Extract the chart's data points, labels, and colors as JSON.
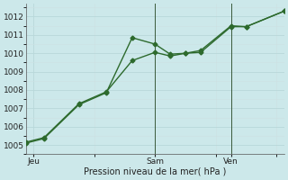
{
  "background_color": "#cce8ea",
  "grid_color_major": "#b8d8da",
  "grid_color_minor": "#cce0e2",
  "line_color": "#2d6a2d",
  "xlabel": "Pression niveau de la mer( hPa )",
  "ylim": [
    1004.5,
    1012.7
  ],
  "yticks": [
    1005,
    1006,
    1007,
    1008,
    1009,
    1010,
    1011,
    1012
  ],
  "xlim": [
    0,
    17
  ],
  "day_labels": [
    "Jeu",
    "Sam",
    "Ven"
  ],
  "day_positions": [
    0.5,
    8.5,
    13.5
  ],
  "vline_positions": [
    8.5,
    13.5
  ],
  "line1_x": [
    0.0,
    1.2,
    3.5,
    5.3,
    7.0,
    8.5,
    9.5,
    10.5,
    11.5,
    13.5,
    14.5,
    17.0
  ],
  "line1_y": [
    1005.1,
    1005.35,
    1007.2,
    1007.85,
    1010.85,
    1010.5,
    1009.95,
    1010.0,
    1010.05,
    1011.45,
    1011.45,
    1012.3
  ],
  "line2_x": [
    0.0,
    1.2,
    3.5,
    5.3,
    7.0,
    8.5,
    9.5,
    10.5,
    11.5,
    13.5,
    14.5,
    17.0
  ],
  "line2_y": [
    1005.15,
    1005.4,
    1007.25,
    1007.9,
    1009.6,
    1010.05,
    1009.85,
    1010.0,
    1010.15,
    1011.5,
    1011.45,
    1012.3
  ],
  "marker": "D",
  "marker_size": 2.5,
  "linewidth": 1.0
}
